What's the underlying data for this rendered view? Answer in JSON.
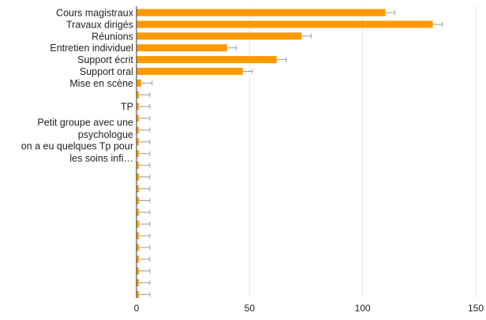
{
  "colors": {
    "bar": "#ff9900",
    "gridline": "#e6e6e6",
    "axis": "#333333",
    "errorbar": "#999999",
    "text": "#222222"
  },
  "chart_data": {
    "type": "bar",
    "orientation": "horizontal",
    "title": "",
    "xlabel": "",
    "ylabel": "",
    "xlim": [
      0,
      150
    ],
    "x_ticks": [
      "0",
      "50",
      "100",
      "150"
    ],
    "grid": true,
    "legend": "none",
    "error_bars": true,
    "categories": [
      "Cours magistraux",
      "Travaux dirigés",
      "Réunions",
      "Entretien individuel",
      "Support écrit",
      "Support oral",
      "Mise en scène",
      "",
      "TP",
      "",
      "Petit groupe avec une psychologue",
      "",
      "on a eu quelques Tp pour les soins infi…",
      "",
      "",
      "",
      "",
      "",
      "",
      "",
      "",
      "",
      "",
      "",
      ""
    ],
    "values": [
      110,
      131,
      73,
      40,
      62,
      47,
      2,
      1,
      1,
      1,
      1,
      1,
      1,
      1,
      1,
      1,
      1,
      1,
      1,
      1,
      1,
      1,
      1,
      1,
      1
    ]
  }
}
